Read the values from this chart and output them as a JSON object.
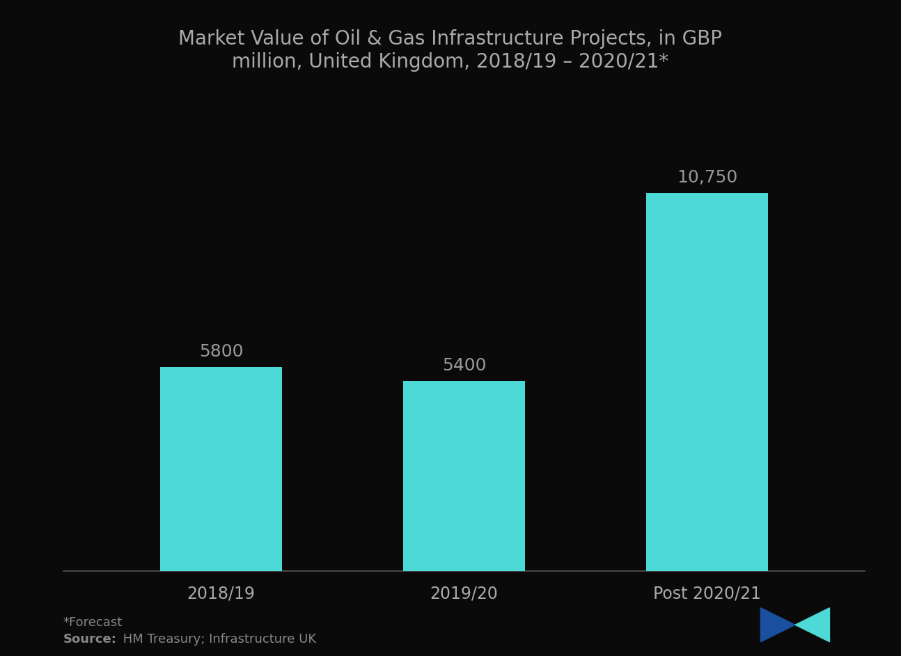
{
  "title": "Market Value of Oil & Gas Infrastructure Projects, in GBP\nmillion, United Kingdom, 2018/19 – 2020/21*",
  "categories": [
    "2018/19",
    "2019/20",
    "Post 2020/21"
  ],
  "values": [
    5800,
    5400,
    10750
  ],
  "bar_color": "#4DD9D5",
  "background_color": "#0a0a0a",
  "text_color": "#aaaaaa",
  "title_color": "#aaaaaa",
  "bar_label_color": "#999999",
  "bar_labels": [
    "5800",
    "5400",
    "10,750"
  ],
  "footnote_star": "*Forecast",
  "footnote_source_bold": "Source:",
  "footnote_source_rest": " HM Treasury; Infrastructure UK",
  "ylim": [
    0,
    14000
  ],
  "bar_width": 0.5,
  "title_fontsize": 20,
  "tick_fontsize": 17,
  "label_fontsize": 18
}
